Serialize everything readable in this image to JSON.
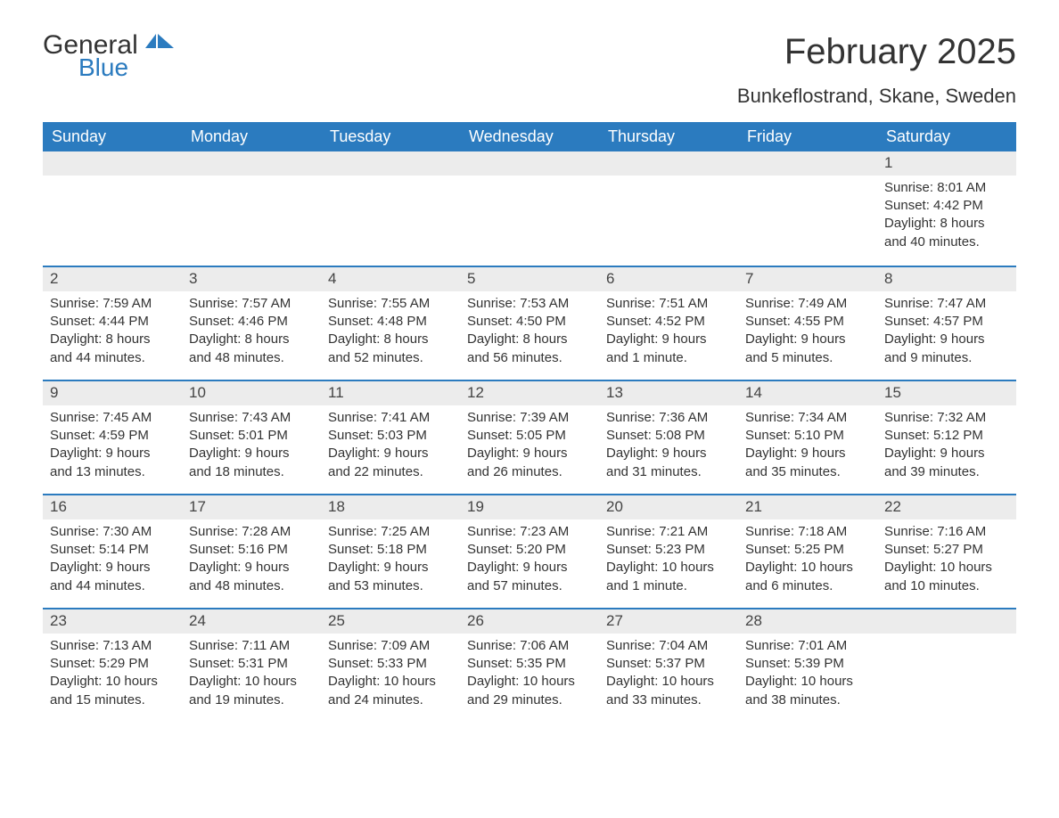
{
  "brand": {
    "word1": "General",
    "word2": "Blue",
    "accent": "#2b7bbf"
  },
  "title": "February 2025",
  "location": "Bunkeflostrand, Skane, Sweden",
  "colors": {
    "header_bg": "#2b7bbf",
    "header_text": "#ffffff",
    "daynum_bg": "#ececec",
    "text": "#333333",
    "rule": "#2b7bbf",
    "page_bg": "#ffffff"
  },
  "typography": {
    "title_fontsize": 40,
    "location_fontsize": 22,
    "dow_fontsize": 18,
    "body_fontsize": 15
  },
  "days_of_week": [
    "Sunday",
    "Monday",
    "Tuesday",
    "Wednesday",
    "Thursday",
    "Friday",
    "Saturday"
  ],
  "weeks": [
    [
      null,
      null,
      null,
      null,
      null,
      null,
      {
        "n": "1",
        "sunrise": "Sunrise: 8:01 AM",
        "sunset": "Sunset: 4:42 PM",
        "d1": "Daylight: 8 hours",
        "d2": "and 40 minutes."
      }
    ],
    [
      {
        "n": "2",
        "sunrise": "Sunrise: 7:59 AM",
        "sunset": "Sunset: 4:44 PM",
        "d1": "Daylight: 8 hours",
        "d2": "and 44 minutes."
      },
      {
        "n": "3",
        "sunrise": "Sunrise: 7:57 AM",
        "sunset": "Sunset: 4:46 PM",
        "d1": "Daylight: 8 hours",
        "d2": "and 48 minutes."
      },
      {
        "n": "4",
        "sunrise": "Sunrise: 7:55 AM",
        "sunset": "Sunset: 4:48 PM",
        "d1": "Daylight: 8 hours",
        "d2": "and 52 minutes."
      },
      {
        "n": "5",
        "sunrise": "Sunrise: 7:53 AM",
        "sunset": "Sunset: 4:50 PM",
        "d1": "Daylight: 8 hours",
        "d2": "and 56 minutes."
      },
      {
        "n": "6",
        "sunrise": "Sunrise: 7:51 AM",
        "sunset": "Sunset: 4:52 PM",
        "d1": "Daylight: 9 hours",
        "d2": "and 1 minute."
      },
      {
        "n": "7",
        "sunrise": "Sunrise: 7:49 AM",
        "sunset": "Sunset: 4:55 PM",
        "d1": "Daylight: 9 hours",
        "d2": "and 5 minutes."
      },
      {
        "n": "8",
        "sunrise": "Sunrise: 7:47 AM",
        "sunset": "Sunset: 4:57 PM",
        "d1": "Daylight: 9 hours",
        "d2": "and 9 minutes."
      }
    ],
    [
      {
        "n": "9",
        "sunrise": "Sunrise: 7:45 AM",
        "sunset": "Sunset: 4:59 PM",
        "d1": "Daylight: 9 hours",
        "d2": "and 13 minutes."
      },
      {
        "n": "10",
        "sunrise": "Sunrise: 7:43 AM",
        "sunset": "Sunset: 5:01 PM",
        "d1": "Daylight: 9 hours",
        "d2": "and 18 minutes."
      },
      {
        "n": "11",
        "sunrise": "Sunrise: 7:41 AM",
        "sunset": "Sunset: 5:03 PM",
        "d1": "Daylight: 9 hours",
        "d2": "and 22 minutes."
      },
      {
        "n": "12",
        "sunrise": "Sunrise: 7:39 AM",
        "sunset": "Sunset: 5:05 PM",
        "d1": "Daylight: 9 hours",
        "d2": "and 26 minutes."
      },
      {
        "n": "13",
        "sunrise": "Sunrise: 7:36 AM",
        "sunset": "Sunset: 5:08 PM",
        "d1": "Daylight: 9 hours",
        "d2": "and 31 minutes."
      },
      {
        "n": "14",
        "sunrise": "Sunrise: 7:34 AM",
        "sunset": "Sunset: 5:10 PM",
        "d1": "Daylight: 9 hours",
        "d2": "and 35 minutes."
      },
      {
        "n": "15",
        "sunrise": "Sunrise: 7:32 AM",
        "sunset": "Sunset: 5:12 PM",
        "d1": "Daylight: 9 hours",
        "d2": "and 39 minutes."
      }
    ],
    [
      {
        "n": "16",
        "sunrise": "Sunrise: 7:30 AM",
        "sunset": "Sunset: 5:14 PM",
        "d1": "Daylight: 9 hours",
        "d2": "and 44 minutes."
      },
      {
        "n": "17",
        "sunrise": "Sunrise: 7:28 AM",
        "sunset": "Sunset: 5:16 PM",
        "d1": "Daylight: 9 hours",
        "d2": "and 48 minutes."
      },
      {
        "n": "18",
        "sunrise": "Sunrise: 7:25 AM",
        "sunset": "Sunset: 5:18 PM",
        "d1": "Daylight: 9 hours",
        "d2": "and 53 minutes."
      },
      {
        "n": "19",
        "sunrise": "Sunrise: 7:23 AM",
        "sunset": "Sunset: 5:20 PM",
        "d1": "Daylight: 9 hours",
        "d2": "and 57 minutes."
      },
      {
        "n": "20",
        "sunrise": "Sunrise: 7:21 AM",
        "sunset": "Sunset: 5:23 PM",
        "d1": "Daylight: 10 hours",
        "d2": "and 1 minute."
      },
      {
        "n": "21",
        "sunrise": "Sunrise: 7:18 AM",
        "sunset": "Sunset: 5:25 PM",
        "d1": "Daylight: 10 hours",
        "d2": "and 6 minutes."
      },
      {
        "n": "22",
        "sunrise": "Sunrise: 7:16 AM",
        "sunset": "Sunset: 5:27 PM",
        "d1": "Daylight: 10 hours",
        "d2": "and 10 minutes."
      }
    ],
    [
      {
        "n": "23",
        "sunrise": "Sunrise: 7:13 AM",
        "sunset": "Sunset: 5:29 PM",
        "d1": "Daylight: 10 hours",
        "d2": "and 15 minutes."
      },
      {
        "n": "24",
        "sunrise": "Sunrise: 7:11 AM",
        "sunset": "Sunset: 5:31 PM",
        "d1": "Daylight: 10 hours",
        "d2": "and 19 minutes."
      },
      {
        "n": "25",
        "sunrise": "Sunrise: 7:09 AM",
        "sunset": "Sunset: 5:33 PM",
        "d1": "Daylight: 10 hours",
        "d2": "and 24 minutes."
      },
      {
        "n": "26",
        "sunrise": "Sunrise: 7:06 AM",
        "sunset": "Sunset: 5:35 PM",
        "d1": "Daylight: 10 hours",
        "d2": "and 29 minutes."
      },
      {
        "n": "27",
        "sunrise": "Sunrise: 7:04 AM",
        "sunset": "Sunset: 5:37 PM",
        "d1": "Daylight: 10 hours",
        "d2": "and 33 minutes."
      },
      {
        "n": "28",
        "sunrise": "Sunrise: 7:01 AM",
        "sunset": "Sunset: 5:39 PM",
        "d1": "Daylight: 10 hours",
        "d2": "and 38 minutes."
      },
      null
    ]
  ]
}
